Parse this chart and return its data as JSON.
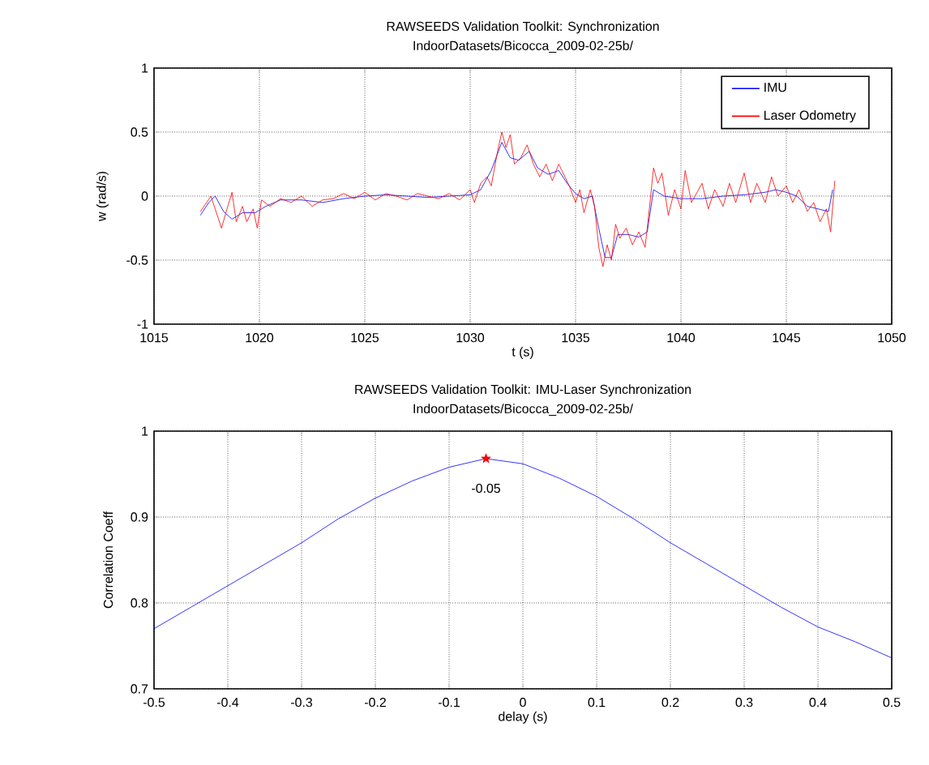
{
  "chart_data": [
    {
      "type": "line",
      "title": "RAWSEEDS Validation  Toolkit:  Synchronization",
      "subtitle": "IndoorDatasets/Bicocca_2009-02-25b/",
      "xlabel": "t (s)",
      "ylabel": "w (rad/s)",
      "xlim": [
        1015,
        1050
      ],
      "ylim": [
        -1,
        1
      ],
      "xticks": [
        1015,
        1020,
        1025,
        1030,
        1035,
        1040,
        1045,
        1050
      ],
      "yticks": [
        -1,
        -0.5,
        0,
        0.5,
        1
      ],
      "grid": true,
      "legend": "top right",
      "series": [
        {
          "name": "IMU",
          "color": "#0000ff",
          "x": [
            1017.2,
            1017.6,
            1017.9,
            1018.3,
            1018.7,
            1019.2,
            1019.8,
            1020.3,
            1021,
            1022,
            1023,
            1024,
            1025,
            1026,
            1027,
            1028,
            1029,
            1030,
            1030.5,
            1031,
            1031.5,
            1031.9,
            1032.3,
            1032.8,
            1033.2,
            1033.7,
            1034.2,
            1034.6,
            1035,
            1035.4,
            1035.8,
            1036.1,
            1036.4,
            1036.7,
            1037,
            1037.5,
            1038,
            1038.4,
            1038.7,
            1039.2,
            1040,
            1041,
            1042,
            1043,
            1044,
            1044.5,
            1045,
            1045.5,
            1046,
            1046.5,
            1047,
            1047.2
          ],
          "values": [
            -0.15,
            -0.05,
            0.0,
            -0.12,
            -0.18,
            -0.13,
            -0.13,
            -0.08,
            -0.03,
            -0.03,
            -0.05,
            -0.02,
            0.0,
            0.01,
            0.0,
            -0.01,
            0.0,
            0.01,
            0.05,
            0.2,
            0.42,
            0.3,
            0.28,
            0.35,
            0.22,
            0.17,
            0.2,
            0.1,
            0.02,
            -0.02,
            0.0,
            -0.25,
            -0.48,
            -0.48,
            -0.3,
            -0.3,
            -0.32,
            -0.28,
            0.05,
            0.0,
            -0.02,
            -0.02,
            0.0,
            0.01,
            0.03,
            0.05,
            0.03,
            0.0,
            -0.08,
            -0.1,
            -0.12,
            0.05
          ]
        },
        {
          "name": "Laser Odometry",
          "color": "#ff0000",
          "x": [
            1017.2,
            1017.5,
            1017.7,
            1018,
            1018.2,
            1018.5,
            1018.7,
            1018.9,
            1019.2,
            1019.4,
            1019.7,
            1019.9,
            1020.1,
            1020.5,
            1021,
            1021.5,
            1022,
            1022.5,
            1023,
            1023.5,
            1024,
            1024.5,
            1025,
            1025.5,
            1026,
            1026.5,
            1027,
            1027.5,
            1028,
            1028.5,
            1029,
            1029.5,
            1030,
            1030.2,
            1030.5,
            1030.8,
            1031,
            1031.3,
            1031.5,
            1031.7,
            1031.9,
            1032.1,
            1032.4,
            1032.7,
            1033,
            1033.3,
            1033.6,
            1033.9,
            1034.2,
            1034.5,
            1034.7,
            1035,
            1035.2,
            1035.4,
            1035.7,
            1035.9,
            1036.1,
            1036.3,
            1036.5,
            1036.7,
            1036.9,
            1037.1,
            1037.4,
            1037.7,
            1038,
            1038.3,
            1038.5,
            1038.7,
            1038.9,
            1039.1,
            1039.4,
            1039.7,
            1040,
            1040.2,
            1040.5,
            1041,
            1041.3,
            1041.6,
            1042,
            1042.3,
            1042.6,
            1043,
            1043.3,
            1043.6,
            1044,
            1044.3,
            1044.6,
            1045,
            1045.3,
            1045.6,
            1046,
            1046.3,
            1046.6,
            1046.9,
            1047.1,
            1047.3
          ],
          "values": [
            -0.12,
            -0.05,
            0.0,
            -0.15,
            -0.25,
            -0.08,
            0.03,
            -0.2,
            -0.08,
            -0.2,
            -0.1,
            -0.25,
            -0.03,
            -0.08,
            -0.02,
            -0.05,
            0.0,
            -0.08,
            -0.03,
            -0.02,
            0.02,
            -0.02,
            0.03,
            -0.03,
            0.02,
            0.0,
            -0.03,
            0.02,
            0.0,
            -0.02,
            0.02,
            -0.03,
            0.05,
            -0.05,
            0.1,
            0.15,
            0.08,
            0.35,
            0.5,
            0.38,
            0.48,
            0.25,
            0.3,
            0.4,
            0.25,
            0.15,
            0.25,
            0.12,
            0.25,
            0.15,
            0.08,
            -0.05,
            0.05,
            -0.13,
            0.05,
            -0.08,
            -0.4,
            -0.55,
            -0.38,
            -0.5,
            -0.22,
            -0.33,
            -0.25,
            -0.38,
            -0.28,
            -0.4,
            -0.1,
            0.22,
            0.1,
            0.18,
            -0.15,
            0.05,
            -0.1,
            0.2,
            -0.05,
            0.1,
            -0.1,
            0.05,
            -0.08,
            0.1,
            -0.05,
            0.18,
            -0.05,
            0.1,
            -0.05,
            0.15,
            0.0,
            0.08,
            -0.05,
            0.05,
            -0.12,
            -0.05,
            -0.2,
            -0.1,
            -0.28,
            0.12
          ]
        }
      ]
    },
    {
      "type": "line",
      "title": "RAWSEEDS Validation  Toolkit:  IMU-Laser  Synchronization",
      "subtitle": "IndoorDatasets/Bicocca_2009-02-25b/",
      "xlabel": "delay  (s)",
      "ylabel": "Correlation  Coeff",
      "xlim": [
        -0.5,
        0.5
      ],
      "ylim": [
        0.7,
        1
      ],
      "xticks": [
        -0.5,
        -0.4,
        -0.3,
        -0.2,
        -0.1,
        0,
        0.1,
        0.2,
        0.3,
        0.4,
        0.5
      ],
      "yticks": [
        0.7,
        0.8,
        0.9,
        1
      ],
      "grid": true,
      "annotations": [
        {
          "text": "-0.05",
          "x": -0.05,
          "y": 0.968
        }
      ],
      "series": [
        {
          "color": "#0000ff",
          "x": [
            -0.5,
            -0.45,
            -0.4,
            -0.35,
            -0.3,
            -0.25,
            -0.2,
            -0.15,
            -0.1,
            -0.05,
            0,
            0.05,
            0.1,
            0.15,
            0.2,
            0.25,
            0.3,
            0.35,
            0.4,
            0.45,
            0.5
          ],
          "values": [
            0.77,
            0.795,
            0.82,
            0.845,
            0.87,
            0.898,
            0.922,
            0.942,
            0.958,
            0.968,
            0.962,
            0.945,
            0.924,
            0.898,
            0.87,
            0.845,
            0.82,
            0.795,
            0.772,
            0.755,
            0.736
          ]
        },
        {
          "type": "scatter",
          "marker": "star",
          "color": "#ff0000",
          "x": [
            -0.05
          ],
          "values": [
            0.968
          ]
        }
      ]
    }
  ]
}
